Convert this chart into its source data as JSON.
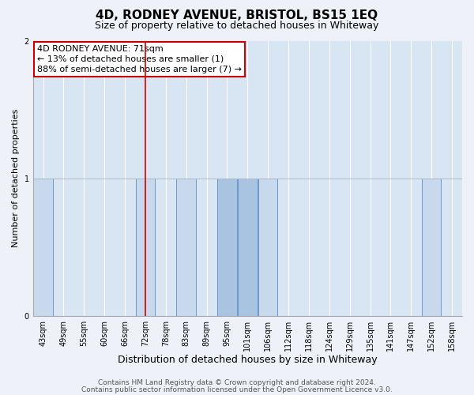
{
  "title": "4D, RODNEY AVENUE, BRISTOL, BS15 1EQ",
  "subtitle": "Size of property relative to detached houses in Whiteway",
  "xlabel": "Distribution of detached houses by size in Whiteway",
  "ylabel": "Number of detached properties",
  "categories": [
    "43sqm",
    "49sqm",
    "55sqm",
    "60sqm",
    "66sqm",
    "72sqm",
    "78sqm",
    "83sqm",
    "89sqm",
    "95sqm",
    "101sqm",
    "106sqm",
    "112sqm",
    "118sqm",
    "124sqm",
    "129sqm",
    "135sqm",
    "141sqm",
    "147sqm",
    "152sqm",
    "158sqm"
  ],
  "bar_heights": [
    1,
    0,
    0,
    0,
    0,
    1,
    0,
    1,
    0,
    1,
    1,
    1,
    0,
    0,
    0,
    0,
    0,
    0,
    0,
    1,
    0
  ],
  "highlight_bar_indices": [
    9,
    10
  ],
  "bar_color": "#c8d9ed",
  "highlight_color": "#a8c4e0",
  "bar_edge_color": "#5b8fc5",
  "background_color": "#eef2f8",
  "plot_bg_color": "#d8e5f3",
  "ylim": [
    0,
    2
  ],
  "yticks": [
    0,
    1,
    2
  ],
  "property_line_x": 5.0,
  "annotation_text": "4D RODNEY AVENUE: 71sqm\n← 13% of detached houses are smaller (1)\n88% of semi-detached houses are larger (7) →",
  "annotation_box_color": "#cc0000",
  "footer_line1": "Contains HM Land Registry data © Crown copyright and database right 2024.",
  "footer_line2": "Contains public sector information licensed under the Open Government Licence v3.0.",
  "title_fontsize": 11,
  "subtitle_fontsize": 9,
  "xlabel_fontsize": 9,
  "ylabel_fontsize": 8,
  "tick_fontsize": 7,
  "footer_fontsize": 6.5,
  "annotation_fontsize": 8
}
